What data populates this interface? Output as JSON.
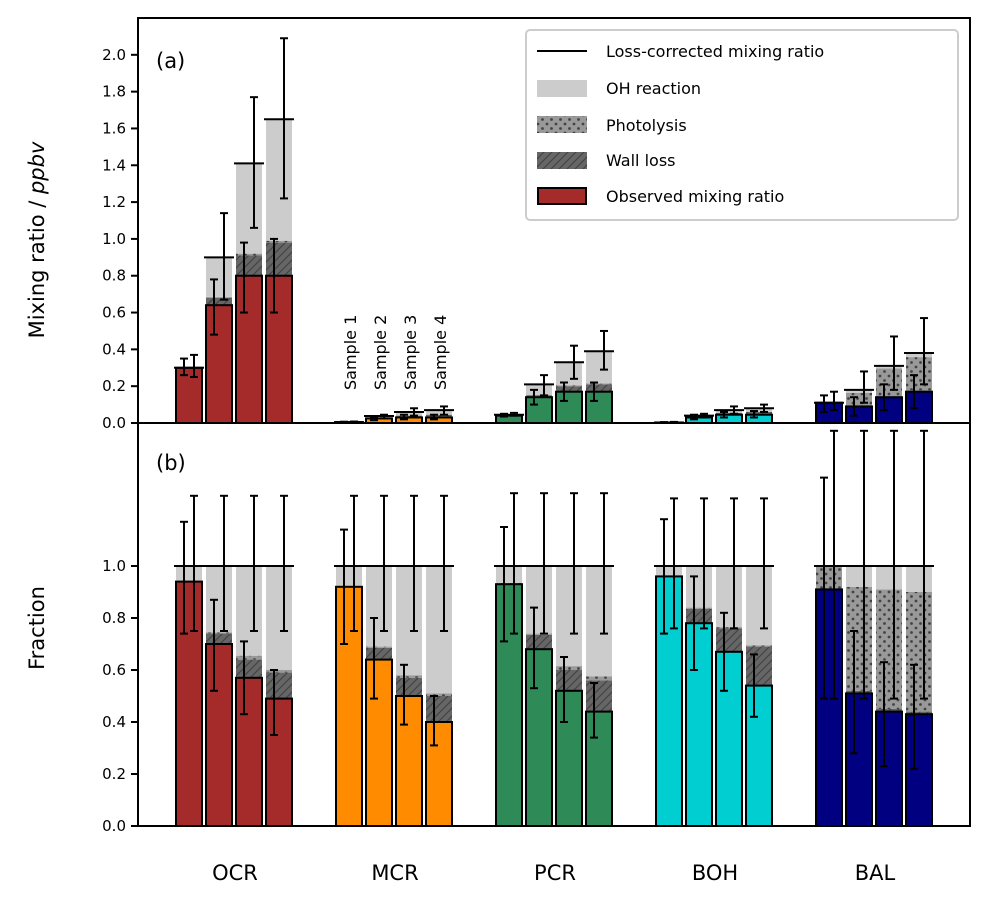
{
  "chart_data": [
    {
      "panel": "(a)",
      "type": "bar",
      "stacked": true,
      "ylabel": "Mixing ratio / ppbv",
      "ylabel_plain": "Mixing ratio / ",
      "ylabel_italic": "ppbv",
      "ylim": [
        0,
        2.2
      ],
      "yticks": [
        "0.0",
        "0.2",
        "0.4",
        "0.6",
        "0.8",
        "1.0",
        "1.2",
        "1.4",
        "1.6",
        "1.8",
        "2.0"
      ],
      "ytick_values": [
        0,
        0.2,
        0.4,
        0.6,
        0.8,
        1.0,
        1.2,
        1.4,
        1.6,
        1.8,
        2.0
      ],
      "categories": [
        "OCR",
        "MCR",
        "PCR",
        "BOH",
        "BAL"
      ],
      "samples": [
        "Sample 1",
        "Sample 2",
        "Sample 3",
        "Sample 4"
      ],
      "legend": {
        "placement": "top-right",
        "entries": [
          {
            "label": "Loss-corrected mixing ratio",
            "kind": "line"
          },
          {
            "label": "OH reaction",
            "kind": "oh"
          },
          {
            "label": "Photolysis",
            "kind": "photo"
          },
          {
            "label": "Wall loss",
            "kind": "wall"
          },
          {
            "label": "Observed mixing ratio",
            "kind": "obs"
          }
        ]
      },
      "groups": [
        {
          "name": "OCR",
          "color": "#a52a2a",
          "observed": [
            0.3,
            0.64,
            0.8,
            0.8
          ],
          "wall_loss": [
            0.0,
            0.04,
            0.11,
            0.18
          ],
          "photolysis": [
            0.0,
            0.005,
            0.01,
            0.01
          ],
          "oh_reaction": [
            0.0,
            0.215,
            0.49,
            0.66
          ],
          "corrected": [
            0.3,
            0.9,
            1.41,
            1.65
          ],
          "observed_err": [
            [
              0.26,
              0.35
            ],
            [
              0.48,
              0.78
            ],
            [
              0.6,
              0.98
            ],
            [
              0.6,
              1.0
            ]
          ],
          "corrected_err": [
            [
              0.25,
              0.37
            ],
            [
              0.67,
              1.14
            ],
            [
              1.06,
              1.77
            ],
            [
              1.22,
              2.09
            ]
          ]
        },
        {
          "name": "MCR",
          "color": "#ff8c00",
          "observed": [
            0.005,
            0.025,
            0.03,
            0.03
          ],
          "wall_loss": [
            0.0,
            0.005,
            0.01,
            0.015
          ],
          "photolysis": [
            0.0,
            0.0,
            0.0,
            0.0
          ],
          "oh_reaction": [
            0.0,
            0.008,
            0.02,
            0.025
          ],
          "corrected": [
            0.005,
            0.038,
            0.06,
            0.07
          ],
          "observed_err": [
            [
              0.003,
              0.007
            ],
            [
              0.015,
              0.035
            ],
            [
              0.02,
              0.045
            ],
            [
              0.02,
              0.045
            ]
          ],
          "corrected_err": [
            [
              0.003,
              0.008
            ],
            [
              0.025,
              0.045
            ],
            [
              0.04,
              0.08
            ],
            [
              0.045,
              0.09
            ]
          ]
        },
        {
          "name": "PCR",
          "color": "#2e8b57",
          "observed": [
            0.04,
            0.14,
            0.17,
            0.17
          ],
          "wall_loss": [
            0.0,
            0.01,
            0.03,
            0.04
          ],
          "photolysis": [
            0.0,
            0.002,
            0.005,
            0.005
          ],
          "oh_reaction": [
            0.005,
            0.058,
            0.125,
            0.175
          ],
          "corrected": [
            0.045,
            0.21,
            0.33,
            0.39
          ],
          "observed_err": [
            [
              0.035,
              0.05
            ],
            [
              0.1,
              0.18
            ],
            [
              0.12,
              0.22
            ],
            [
              0.12,
              0.22
            ]
          ],
          "corrected_err": [
            [
              0.04,
              0.055
            ],
            [
              0.15,
              0.26
            ],
            [
              0.24,
              0.42
            ],
            [
              0.29,
              0.5
            ]
          ]
        },
        {
          "name": "BOH",
          "color": "#00ced1",
          "observed": [
            0.003,
            0.03,
            0.045,
            0.045
          ],
          "wall_loss": [
            0.0,
            0.005,
            0.01,
            0.015
          ],
          "photolysis": [
            0.0,
            0.0,
            0.0,
            0.0
          ],
          "oh_reaction": [
            0.0,
            0.005,
            0.015,
            0.02
          ],
          "corrected": [
            0.003,
            0.04,
            0.07,
            0.08
          ],
          "observed_err": [
            [
              0.002,
              0.005
            ],
            [
              0.02,
              0.045
            ],
            [
              0.03,
              0.06
            ],
            [
              0.03,
              0.065
            ]
          ],
          "corrected_err": [
            [
              0.002,
              0.006
            ],
            [
              0.03,
              0.05
            ],
            [
              0.05,
              0.09
            ],
            [
              0.06,
              0.1
            ]
          ]
        },
        {
          "name": "BAL",
          "color": "#000080",
          "observed": [
            0.11,
            0.09,
            0.14,
            0.17
          ],
          "wall_loss": [
            0.0,
            0.003,
            0.006,
            0.008
          ],
          "photolysis": [
            0.005,
            0.07,
            0.15,
            0.18
          ],
          "oh_reaction": [
            0.0,
            0.017,
            0.014,
            0.022
          ],
          "corrected": [
            0.11,
            0.18,
            0.31,
            0.38
          ],
          "observed_err": [
            [
              0.06,
              0.15
            ],
            [
              0.04,
              0.14
            ],
            [
              0.07,
              0.21
            ],
            [
              0.08,
              0.26
            ]
          ],
          "corrected_err": [
            [
              0.07,
              0.17
            ],
            [
              0.11,
              0.28
            ],
            [
              0.18,
              0.47
            ],
            [
              0.21,
              0.57
            ]
          ]
        }
      ],
      "annotations": [
        "(a)"
      ]
    },
    {
      "panel": "(b)",
      "type": "bar",
      "stacked": true,
      "ylabel": "Fraction",
      "ylim": [
        0,
        1.55
      ],
      "yticks": [
        "0.0",
        "0.2",
        "0.4",
        "0.6",
        "0.8",
        "1.0"
      ],
      "ytick_values": [
        0,
        0.2,
        0.4,
        0.6,
        0.8,
        1.0
      ],
      "categories": [
        "OCR",
        "MCR",
        "PCR",
        "BOH",
        "BAL"
      ],
      "groups": [
        {
          "name": "OCR",
          "color": "#a52a2a",
          "observed": [
            0.94,
            0.7,
            0.57,
            0.49
          ],
          "wall_loss": [
            0.0,
            0.04,
            0.07,
            0.1
          ],
          "photolysis": [
            0.003,
            0.005,
            0.015,
            0.01
          ],
          "oh_reaction": [
            0.057,
            0.255,
            0.345,
            0.4
          ],
          "corrected": [
            1.0,
            1.0,
            1.0,
            1.0
          ],
          "observed_err": [
            [
              0.74,
              1.17
            ],
            [
              0.52,
              0.87
            ],
            [
              0.43,
              0.71
            ],
            [
              0.35,
              0.6
            ]
          ],
          "corrected_err": [
            [
              0.75,
              1.27
            ],
            [
              0.75,
              1.27
            ],
            [
              0.75,
              1.27
            ],
            [
              0.75,
              1.27
            ]
          ]
        },
        {
          "name": "MCR",
          "color": "#ff8c00",
          "observed": [
            0.92,
            0.64,
            0.5,
            0.4
          ],
          "wall_loss": [
            0.0,
            0.045,
            0.07,
            0.1
          ],
          "photolysis": [
            0.0,
            0.005,
            0.01,
            0.01
          ],
          "oh_reaction": [
            0.08,
            0.31,
            0.42,
            0.49
          ],
          "corrected": [
            1.0,
            1.0,
            1.0,
            1.0
          ],
          "observed_err": [
            [
              0.7,
              1.14
            ],
            [
              0.49,
              0.8
            ],
            [
              0.39,
              0.62
            ],
            [
              0.31,
              0.5
            ]
          ],
          "corrected_err": [
            [
              0.75,
              1.27
            ],
            [
              0.75,
              1.27
            ],
            [
              0.75,
              1.27
            ],
            [
              0.75,
              1.27
            ]
          ]
        },
        {
          "name": "PCR",
          "color": "#2e8b57",
          "observed": [
            0.93,
            0.68,
            0.52,
            0.44
          ],
          "wall_loss": [
            0.0,
            0.055,
            0.08,
            0.12
          ],
          "photolysis": [
            0.005,
            0.005,
            0.015,
            0.015
          ],
          "oh_reaction": [
            0.065,
            0.26,
            0.385,
            0.425
          ],
          "corrected": [
            1.0,
            1.0,
            1.0,
            1.0
          ],
          "observed_err": [
            [
              0.71,
              1.15
            ],
            [
              0.53,
              0.84
            ],
            [
              0.4,
              0.65
            ],
            [
              0.34,
              0.55
            ]
          ],
          "corrected_err": [
            [
              0.74,
              1.28
            ],
            [
              0.74,
              1.28
            ],
            [
              0.74,
              1.28
            ],
            [
              0.74,
              1.28
            ]
          ]
        },
        {
          "name": "BOH",
          "color": "#00ced1",
          "observed": [
            0.96,
            0.78,
            0.67,
            0.54
          ],
          "wall_loss": [
            0.0,
            0.055,
            0.09,
            0.15
          ],
          "photolysis": [
            0.0,
            0.005,
            0.005,
            0.005
          ],
          "oh_reaction": [
            0.04,
            0.16,
            0.235,
            0.305
          ],
          "corrected": [
            1.0,
            1.0,
            1.0,
            1.0
          ],
          "observed_err": [
            [
              0.74,
              1.18
            ],
            [
              0.6,
              0.96
            ],
            [
              0.52,
              0.82
            ],
            [
              0.42,
              0.66
            ]
          ],
          "corrected_err": [
            [
              0.76,
              1.26
            ],
            [
              0.76,
              1.26
            ],
            [
              0.76,
              1.26
            ],
            [
              0.76,
              1.26
            ]
          ]
        },
        {
          "name": "BAL",
          "color": "#000080",
          "observed": [
            0.91,
            0.51,
            0.44,
            0.43
          ],
          "wall_loss": [
            0.0,
            0.01,
            0.01,
            0.01
          ],
          "photolysis": [
            0.09,
            0.4,
            0.46,
            0.46
          ],
          "oh_reaction": [
            0.0,
            0.08,
            0.09,
            0.1
          ],
          "corrected": [
            1.0,
            1.0,
            1.0,
            1.0
          ],
          "observed_err": [
            [
              0.49,
              1.34
            ],
            [
              0.28,
              0.75
            ],
            [
              0.23,
              0.63
            ],
            [
              0.22,
              0.62
            ]
          ],
          "corrected_err": [
            [
              0.49,
              1.52
            ],
            [
              0.49,
              1.52
            ],
            [
              0.49,
              1.52
            ],
            [
              0.49,
              1.52
            ]
          ]
        }
      ],
      "annotations": [
        "(b)"
      ]
    }
  ],
  "colors": {
    "oh_reaction": "#cccccc",
    "photolysis": "#999999",
    "wall_loss": "#666666",
    "axis": "#000000"
  }
}
